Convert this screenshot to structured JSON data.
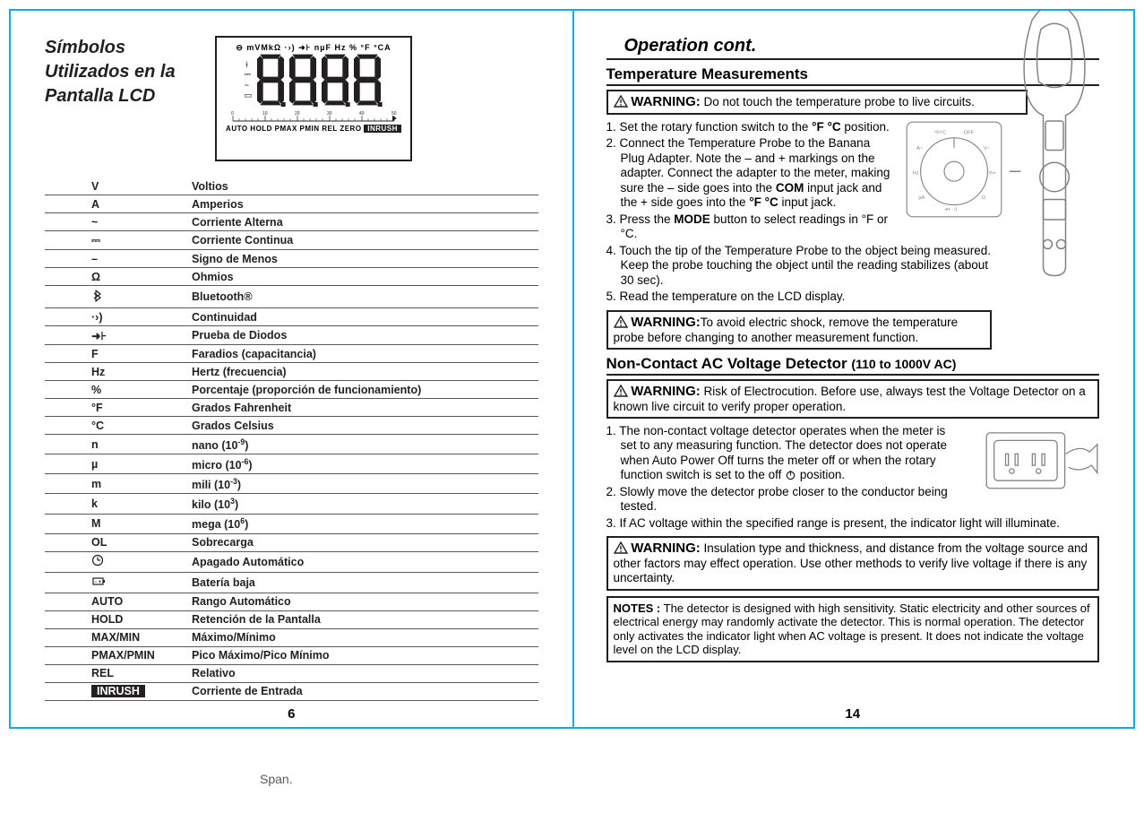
{
  "left": {
    "title": "Símbolos Utilizados en la Pantalla LCD",
    "lcd_top": "⊖ mVMkΩ ·›) ➜⊦ nµF Hz % °F °CA",
    "lcd_bottom_pre": "AUTO HOLD PMAX PMIN REL ZERO",
    "lcd_inrush": "INRUSH",
    "symbols": [
      {
        "sym": "V",
        "desc": "Voltios"
      },
      {
        "sym": "A",
        "desc": "Amperios"
      },
      {
        "sym": "~",
        "desc": "Corriente Alterna"
      },
      {
        "sym": "⎓",
        "desc": "Corriente Continua"
      },
      {
        "sym": "–",
        "desc": "Signo de Menos"
      },
      {
        "sym": "Ω",
        "desc": "Ohmios"
      },
      {
        "sym": "bt",
        "desc": "Bluetooth®"
      },
      {
        "sym": "·›)",
        "desc": "Continuidad"
      },
      {
        "sym": "➜⊦",
        "desc": "Prueba de Diodos"
      },
      {
        "sym": "F",
        "desc": "Faradios (capacitancia)"
      },
      {
        "sym": "Hz",
        "desc": "Hertz (frecuencia)"
      },
      {
        "sym": "%",
        "desc": "Porcentaje (proporción de funcionamiento)"
      },
      {
        "sym": "°F",
        "desc": "Grados Fahrenheit"
      },
      {
        "sym": "°C",
        "desc": "Grados Celsius"
      },
      {
        "sym": "n",
        "desc": "nano (10⁻⁹)"
      },
      {
        "sym": "µ",
        "desc": "micro (10⁻⁶)"
      },
      {
        "sym": "m",
        "desc": "mili (10⁻³)"
      },
      {
        "sym": "k",
        "desc": "kilo (10³)"
      },
      {
        "sym": "M",
        "desc": "mega (10⁶)"
      },
      {
        "sym": "OL",
        "desc": "Sobrecarga"
      },
      {
        "sym": "clock",
        "desc": "Apagado Automático"
      },
      {
        "sym": "batt",
        "desc": "Batería baja"
      },
      {
        "sym": "AUTO",
        "desc": "Rango Automático"
      },
      {
        "sym": "HOLD",
        "desc": "Retención de la Pantalla"
      },
      {
        "sym": "MAX/MIN",
        "desc": "Máximo/Mínimo"
      },
      {
        "sym": "PMAX/PMIN",
        "desc": "Pico Máximo/Pico Mínimo"
      },
      {
        "sym": "REL",
        "desc": "Relativo"
      },
      {
        "sym": "inrush",
        "desc": "Corriente de Entrada"
      }
    ],
    "page_num": "6"
  },
  "right": {
    "op_heading": "Operation cont.",
    "sec1": "Temperature Measurements",
    "warn1": "Do not touch the temperature probe to live circuits.",
    "steps1": [
      "1. Set the rotary function switch to the °F °C position.",
      "2. Connect the Temperature Probe to the Banana Plug Adapter. Note the – and + markings on the adapter. Connect the adapter to the meter, making sure the – side goes into the COM input jack and the + side goes into the °F °C input jack.",
      "3. Press the MODE button to select readings in °F or °C.",
      "4. Touch the tip of the Temperature Probe to the object being measured. Keep the probe touching the object until the reading stabilizes (about 30 sec).",
      "5. Read the temperature on the LCD display."
    ],
    "warn2": "To avoid electric shock, remove the temperature probe before changing to another measurement function.",
    "sec2_main": "Non-Contact AC Voltage Detector",
    "sec2_sub": "(110 to 1000V AC)",
    "warn3": "Risk of Electrocution. Before use, always test the Voltage Detector on a known live circuit to verify proper operation.",
    "steps2_1a": "1. The non-contact voltage detector operates when the meter is set to any measuring function. The detector does not operate when Auto Power Off turns the meter off or when the rotary function switch is set to the off ",
    "steps2_1b": " position.",
    "steps2_2": "2. Slowly move the detector probe closer to the conductor being tested.",
    "steps2_3": "3. If AC voltage within the specified range is present, the indicator light will illuminate.",
    "warn4": "Insulation type and thickness, and distance from the voltage source and other factors may effect operation. Use other methods to verify live voltage if there is any uncertainty.",
    "notes_label": "NOTES :",
    "notes": "The detector is designed with high sensitivity. Static electricity and other sources of electrical energy may randomly activate the detector. This is normal operation. The detector only activates the indicator light when AC voltage is present. It does not indicate the voltage level on the LCD display.",
    "page_num": "14",
    "warning_label": "WARNING:"
  },
  "footer": "Span.",
  "colors": {
    "frame": "#00aeef",
    "text": "#231f20",
    "rule": "#58595b"
  }
}
